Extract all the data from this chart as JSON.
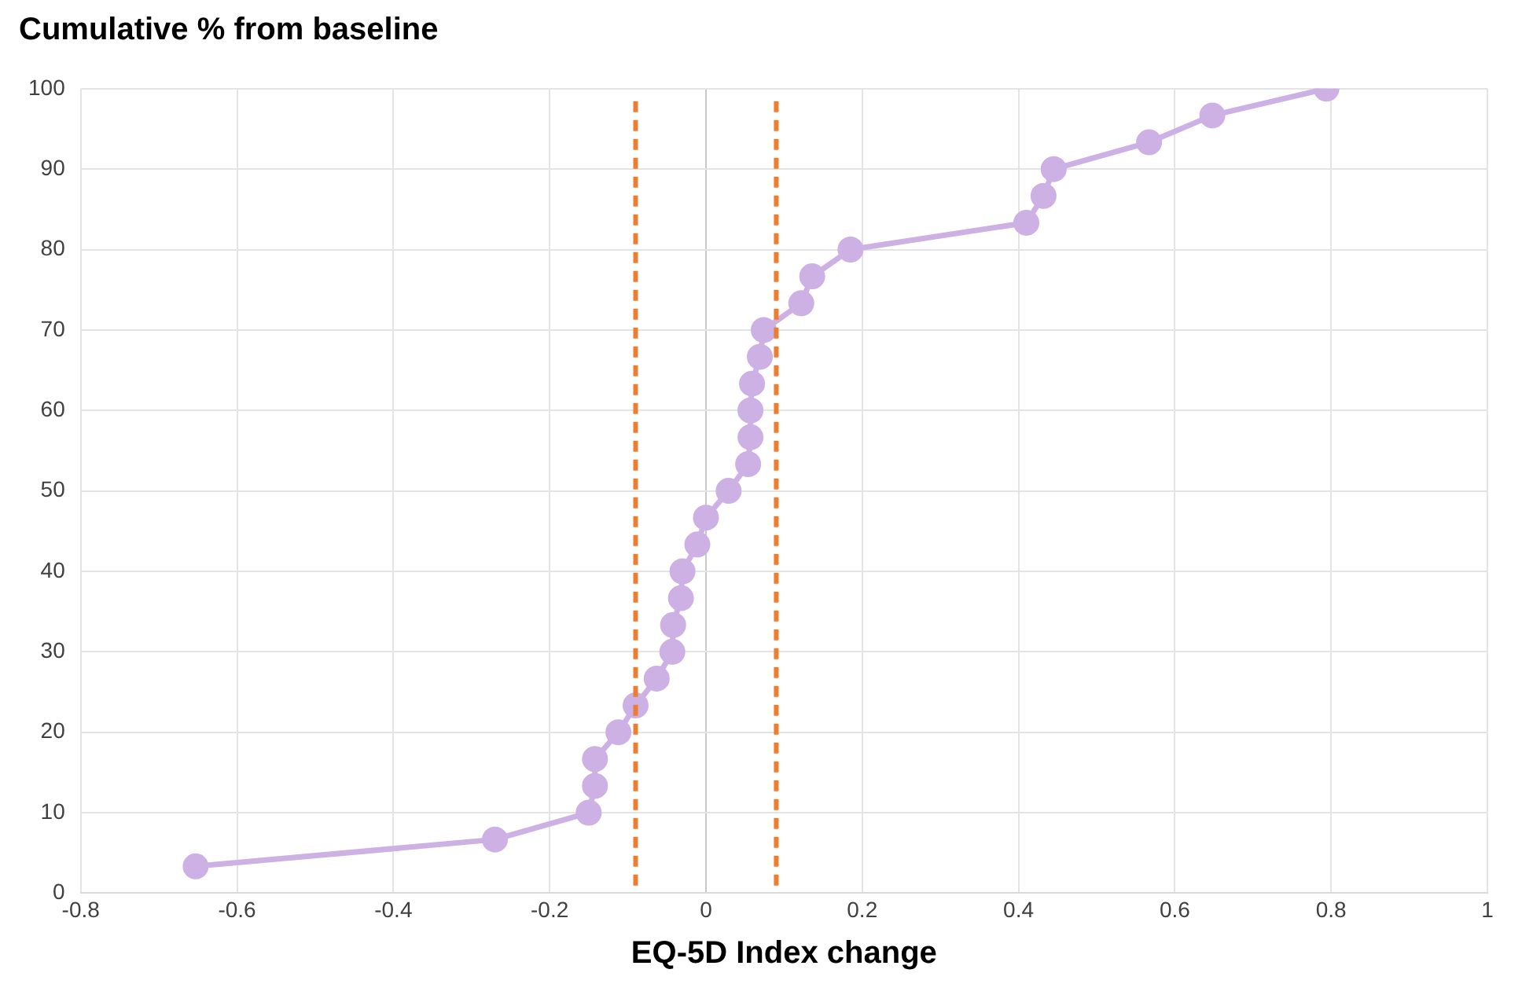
{
  "chart_data": {
    "type": "line",
    "ylabel": "Cumulative % from baseline",
    "xlabel": "EQ-5D Index change",
    "xlim": [
      -0.8,
      1
    ],
    "xticks": [
      -0.8,
      -0.6,
      -0.4,
      -0.2,
      0,
      0.2,
      0.4,
      0.6,
      0.8,
      1
    ],
    "ylim": [
      0,
      100
    ],
    "yticks": [
      0,
      10,
      20,
      30,
      40,
      50,
      60,
      70,
      80,
      90,
      100
    ],
    "grid": true,
    "legend": false,
    "marker": "circle",
    "line_style": "solid",
    "series": [
      {
        "color": "#cdb0e4",
        "x": [
          -0.653,
          -0.27,
          -0.15,
          -0.142,
          -0.142,
          -0.112,
          -0.09,
          -0.063,
          -0.043,
          -0.042,
          -0.032,
          -0.03,
          -0.011,
          0.0,
          0.029,
          0.054,
          0.057,
          0.057,
          0.059,
          0.069,
          0.074,
          0.122,
          0.136,
          0.185,
          0.41,
          0.432,
          0.445,
          0.567,
          0.648,
          0.794
        ],
        "values": [
          3.33,
          6.67,
          10,
          13.33,
          16.67,
          20,
          23.33,
          26.67,
          30,
          33.33,
          36.67,
          40,
          43.33,
          46.67,
          50,
          53.33,
          56.67,
          60,
          63.33,
          66.67,
          70,
          73.33,
          76.67,
          80,
          83.33,
          86.67,
          90,
          93.33,
          96.67,
          100
        ]
      }
    ],
    "ref_lines": [
      {
        "axis": "x",
        "value": -0.09,
        "color": "#ed7d31",
        "line_style": "dashed"
      },
      {
        "axis": "x",
        "value": 0.09,
        "color": "#ed7d31",
        "line_style": "dashed"
      }
    ]
  }
}
